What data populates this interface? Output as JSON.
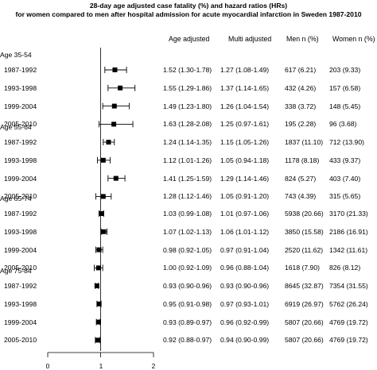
{
  "chart_data": {
    "type": "forest",
    "title": "28-day age adjusted case fatality (%) and hazard ratios (HRs)",
    "subtitle": "for women compared to men after hospital admission for acute myocardial infarction in Sweden 1987-2010",
    "columns": [
      "Age adjusted",
      "Multi adjusted",
      "Men n (%)",
      "Women n (%)"
    ],
    "x_ticks": [
      "0",
      "1",
      "2"
    ],
    "xlim": [
      0,
      2
    ],
    "reference_line": 1,
    "groups": [
      {
        "label": "Age 35-54",
        "rows": [
          {
            "period": "1987-1992",
            "hr": 1.27,
            "lo": 1.08,
            "hi": 1.49,
            "age_adjusted": "1.52 (1.30-1.78)",
            "multi_adjusted": "1.27 (1.08-1.49)",
            "men": "617 (6.21)",
            "women": "203 (9.33)"
          },
          {
            "period": "1993-1998",
            "hr": 1.37,
            "lo": 1.14,
            "hi": 1.65,
            "age_adjusted": "1.55 (1.29-1.86)",
            "multi_adjusted": "1.37 (1.14-1.65)",
            "men": "432 (4.26)",
            "women": "157 (6.58)"
          },
          {
            "period": "1999-2004",
            "hr": 1.26,
            "lo": 1.04,
            "hi": 1.54,
            "age_adjusted": "1.49 (1.23-1.80)",
            "multi_adjusted": "1.26 (1.04-1.54)",
            "men": "338 (3.72)",
            "women": "148 (5.45)"
          },
          {
            "period": "2005-2010",
            "hr": 1.25,
            "lo": 0.97,
            "hi": 1.61,
            "age_adjusted": "1.63 (1.28-2.08)",
            "multi_adjusted": "1.25 (0.97-1.61)",
            "men": "195 (2.28)",
            "women": "96 (3.68)"
          }
        ]
      },
      {
        "label": "Age 55-64",
        "rows": [
          {
            "period": "1987-1992",
            "hr": 1.15,
            "lo": 1.05,
            "hi": 1.26,
            "age_adjusted": "1.24 (1.14-1.35)",
            "multi_adjusted": "1.15 (1.05-1.26)",
            "men": "1837 (11.10)",
            "women": "712 (13.90)"
          },
          {
            "period": "1993-1998",
            "hr": 1.05,
            "lo": 0.94,
            "hi": 1.18,
            "age_adjusted": "1.12 (1.01-1.26)",
            "multi_adjusted": "1.05 (0.94-1.18)",
            "men": "1178 (8.18)",
            "women": "433 (9.37)"
          },
          {
            "period": "1999-2004",
            "hr": 1.29,
            "lo": 1.14,
            "hi": 1.46,
            "age_adjusted": "1.41 (1.25-1.59)",
            "multi_adjusted": "1.29 (1.14-1.46)",
            "men": "824 (5.27)",
            "women": "403 (7.40)"
          },
          {
            "period": "2005-2010",
            "hr": 1.05,
            "lo": 0.91,
            "hi": 1.2,
            "age_adjusted": "1.28 (1.12-1.46)",
            "multi_adjusted": "1.05 (0.91-1.20)",
            "men": "743 (4.39)",
            "women": "315 (5.65)"
          }
        ]
      },
      {
        "label": "Age 65-74",
        "rows": [
          {
            "period": "1987-1992",
            "hr": 1.01,
            "lo": 0.97,
            "hi": 1.06,
            "age_adjusted": "1.03 (0.99-1.08)",
            "multi_adjusted": "1.01 (0.97-1.06)",
            "men": "5938 (20.66)",
            "women": "3170 (21.33)"
          },
          {
            "period": "1993-1998",
            "hr": 1.06,
            "lo": 1.01,
            "hi": 1.12,
            "age_adjusted": "1.07 (1.02-1.13)",
            "multi_adjusted": "1.06 (1.01-1.12)",
            "men": "3850 (15.58)",
            "women": "2186 (16.91)"
          },
          {
            "period": "1999-2004",
            "hr": 0.97,
            "lo": 0.91,
            "hi": 1.04,
            "age_adjusted": "0.98 (0.92-1.05)",
            "multi_adjusted": "0.97 (0.91-1.04)",
            "men": "2520 (11.62)",
            "women": "1342 (11.61)"
          },
          {
            "period": "2005-2010",
            "hr": 0.96,
            "lo": 0.88,
            "hi": 1.04,
            "age_adjusted": "1.00 (0.92-1.09)",
            "multi_adjusted": "0.96 (0.88-1.04)",
            "men": "1618 (7.90)",
            "women": "826 (8.12)"
          }
        ]
      },
      {
        "label": "Age 75-84",
        "rows": [
          {
            "period": "1987-1992",
            "hr": 0.93,
            "lo": 0.9,
            "hi": 0.96,
            "age_adjusted": "0.93 (0.90-0.96)",
            "multi_adjusted": "0.93 (0.90-0.96)",
            "men": "8645 (32.87)",
            "women": "7354 (31.55)"
          },
          {
            "period": "1993-1998",
            "hr": 0.97,
            "lo": 0.93,
            "hi": 1.01,
            "age_adjusted": "0.95 (0.91-0.98)",
            "multi_adjusted": "0.97 (0.93-1.01)",
            "men": "6919 (26.97)",
            "women": "5762 (26.24)"
          },
          {
            "period": "1999-2004",
            "hr": 0.96,
            "lo": 0.92,
            "hi": 0.99,
            "age_adjusted": "0.93 (0.89-0.97)",
            "multi_adjusted": "0.96 (0.92-0.99)",
            "men": "5807 (20.66)",
            "women": "4769 (19.72)"
          },
          {
            "period": "2005-2010",
            "hr": 0.94,
            "lo": 0.9,
            "hi": 0.99,
            "age_adjusted": "0.92 (0.88-0.97)",
            "multi_adjusted": "0.94 (0.90-0.99)",
            "men": "5807 (20.66)",
            "women": "4769 (19.72)"
          }
        ]
      }
    ]
  }
}
